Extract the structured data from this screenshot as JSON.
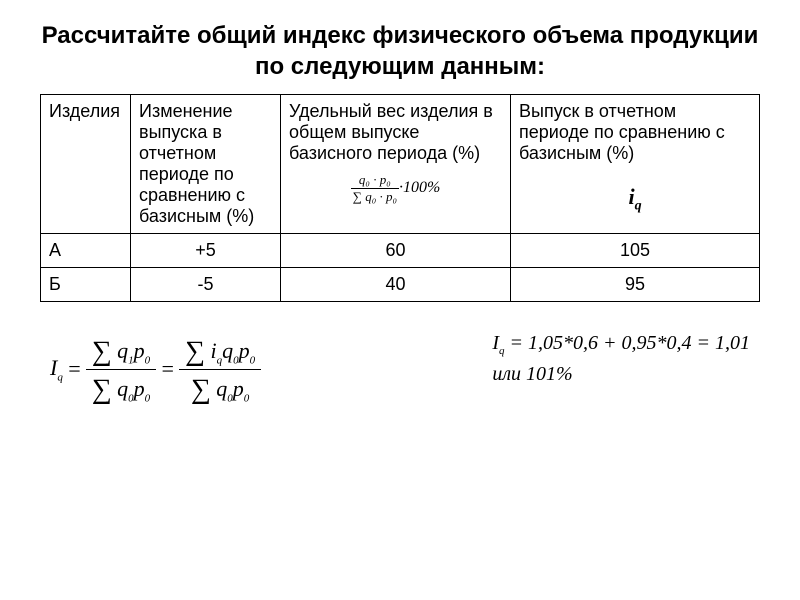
{
  "title": "Рассчитайте общий индекс физического объема продукции по следующим данным:",
  "table": {
    "headers": {
      "c1": "Изделия",
      "c2": "Изменение выпуска в отчетном периоде по сравнению с базисным (%)",
      "c3": "Удельный вес изделия в общем выпуске базисного периода (%)",
      "c4": "Выпуск в отчетном периоде по сравнению с базисным (%)"
    },
    "header_formula": {
      "num": "q₀ · p₀",
      "den": "∑ q₀ · p₀",
      "suffix": "·100%"
    },
    "header_symbol": "i",
    "header_symbol_sub": "q",
    "rows": [
      {
        "c1": "А",
        "c2": "+5",
        "c3": "60",
        "c4": "105"
      },
      {
        "c1": "Б",
        "c2": "-5",
        "c3": "40",
        "c4": "95"
      }
    ]
  },
  "formula_left": {
    "lhs": "I",
    "lhs_sub": "q",
    "eq": "=",
    "frac1_num": "∑ q₁p₀",
    "frac1_den": "∑ q₀p₀",
    "frac2_num_a": "∑ i",
    "frac2_num_b": "q",
    "frac2_num_c": "q₀p₀",
    "frac2_den": "∑ q₀p₀"
  },
  "formula_right": {
    "line1": "Iq = 1,05*0,6 + 0,95*0,4 = 1,01",
    "line1_lhs": "I",
    "line1_sub": "q",
    "line1_rest": " = 1,05*0,6 + 0,95*0,4 = 1,01",
    "line2": "или 101%"
  },
  "styling": {
    "font_family_body": "Arial",
    "font_family_math": "Times New Roman",
    "title_fontsize": 24,
    "cell_fontsize": 18,
    "text_color": "#000000",
    "background_color": "#ffffff",
    "border_color": "#000000"
  }
}
